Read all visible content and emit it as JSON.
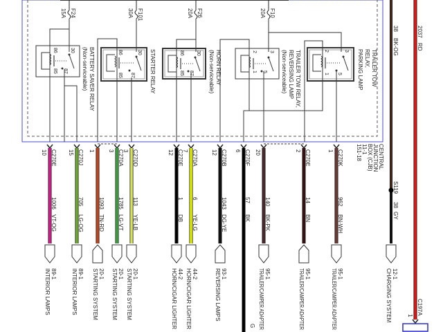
{
  "cjb": {
    "lines": [
      "CENTRAL",
      "JUNCTION",
      "BOX (CJB)",
      "11-1",
      "151-18"
    ],
    "border_color": "#3b3bd0"
  },
  "fuses": [
    {
      "id": "F24",
      "rating": "15A"
    },
    {
      "id": "F101",
      "rating": "30A"
    },
    {
      "id": "F26",
      "rating": "20A"
    },
    {
      "id": "F10",
      "rating": "20A"
    }
  ],
  "relays": [
    {
      "name_lines": [
        "BATTERY SAVER RELAY",
        "(Non-serviceable)"
      ],
      "pins": [
        "86",
        "30",
        "85",
        "87"
      ]
    },
    {
      "name_lines": [
        "STARTER RELAY"
      ],
      "pins": [
        "86",
        "30",
        "85",
        "87"
      ]
    },
    {
      "name_lines": [
        "HORN RELAY",
        "(Non-serviceable)"
      ],
      "pins": [
        "86",
        "30",
        "85",
        "87"
      ]
    },
    {
      "name_lines": [
        "TRAILER TOW RELAY,",
        "REVERSING LAMP",
        "(Non-serviceable)"
      ],
      "pins": [
        "2",
        "3",
        "1",
        "5"
      ]
    },
    {
      "name_lines": [
        "TRAILER TOW",
        "RELAY,",
        "PARKING LAMP"
      ],
      "pins": [
        "2",
        "3",
        "1",
        "5"
      ]
    }
  ],
  "wires": [
    {
      "connector": "C270E",
      "pin": "10",
      "circuit": "1006",
      "color_code": "VT-OG",
      "color": "#d21f8e",
      "dest_page": "89-1",
      "dest_name": "INTERIOR LAMPS",
      "direction": "out"
    },
    {
      "connector": "C270J",
      "pin": "15",
      "circuit": "705",
      "color_code": "LG-OG",
      "color": "#6fae2e",
      "dest_page": "89-1",
      "dest_name": "INTERIOR LAMPS",
      "direction": "out"
    },
    {
      "connector": "",
      "pin": "1",
      "circuit": "1093",
      "color_code": "TN-RD",
      "color": "#c4441e",
      "dest_page": "20-1",
      "dest_name": "STARTING SYSTEM",
      "direction": "in"
    },
    {
      "connector": "C270A",
      "pin": "3",
      "circuit": "1785",
      "color_code": "LG-VT",
      "color": "#3fa43f",
      "dest_page": "20-1",
      "dest_name": "STARTING SYSTEM",
      "direction": "out"
    },
    {
      "connector": "C270D",
      "pin": "3",
      "circuit": "113",
      "color_code": "YE-LB",
      "color": "#d6e25a",
      "dest_page": "20-1",
      "dest_name": "STARTING SYSTEM",
      "direction": "out"
    },
    {
      "connector": "C270E",
      "pin": "12",
      "circuit": "1",
      "color_code": "DB",
      "color": "#000000",
      "dest_page": "44-2",
      "dest_name": "HORN/CIGAR LIGHTER",
      "direction": "out"
    },
    {
      "connector": "C270A",
      "pin": "7",
      "circuit": "6",
      "color_code": "YE-LG",
      "color": "#e2f000",
      "dest_page": "44-2",
      "dest_name": "HORN/CIGAR LIGHTER",
      "direction": "out"
    },
    {
      "connector": "C270B",
      "pin": "12",
      "circuit": "1043",
      "color_code": "DG-YE",
      "color": "#111111",
      "dest_page": "93-1",
      "dest_name": "REVERSING LAMPS",
      "direction": "in"
    },
    {
      "connector": "C270F",
      "pin": "6",
      "circuit": "57",
      "color_code": "BK",
      "color": "#000000",
      "dest_page": "",
      "dest_name": "G",
      "direction": "none"
    },
    {
      "connector": "",
      "pin": "20",
      "circuit": "140",
      "color_code": "BK-PK",
      "color": "#4a2a2c",
      "dest_page": "95-1",
      "dest_name": "TRAILER/CAMPER ADAPTER",
      "direction": "out"
    },
    {
      "connector": "C270E",
      "pin": "2",
      "circuit": "14",
      "color_code": "BN",
      "color": "#3a1010",
      "dest_page": "95-1",
      "dest_name": "TRAILER/CAMPER ADAPTER",
      "direction": "in"
    },
    {
      "connector": "C270K",
      "pin": "1",
      "circuit": "962",
      "color_code": "BN-WH",
      "color": "#6a3a36",
      "dest_page": "95-1",
      "dest_name": "TRAILER/CAMPER ADAPTER",
      "direction": "out"
    }
  ],
  "charging_wire": {
    "upper_circuit": "38",
    "upper_color_code": "BK-OG",
    "splice": "S119",
    "lower_circuit": "38",
    "lower_color_code": "GY",
    "dest_page": "12-1",
    "dest_name": "CHARGING SYSTEM",
    "color": "#111111"
  },
  "battery_wire": {
    "circuit": "2037",
    "color_code": "RD",
    "connector": "C197A",
    "pin": "1",
    "color": "#e01818"
  }
}
